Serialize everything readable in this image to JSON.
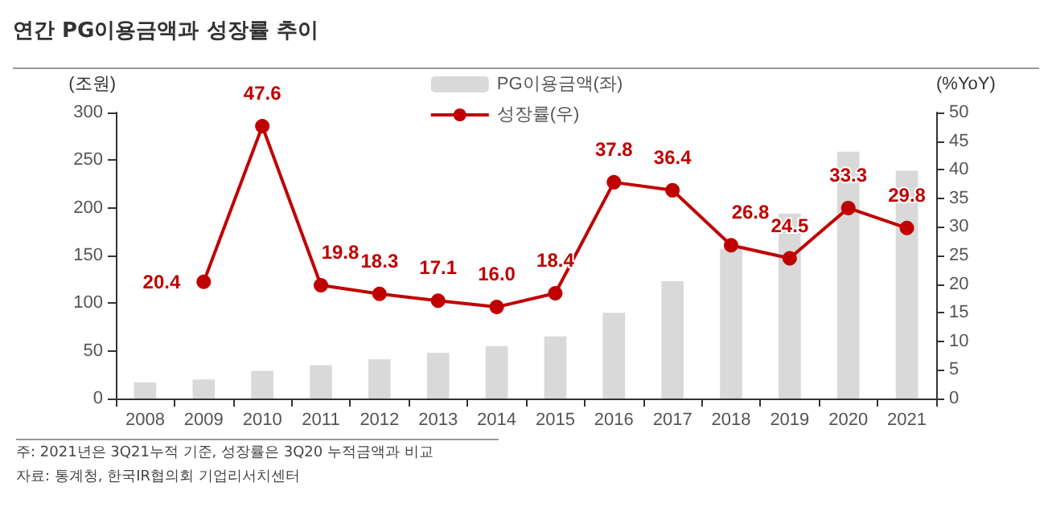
{
  "chart_data": {
    "type": "bar",
    "title": "연간 PG이용금액과 성장률 추이",
    "ylabel": "(조원)",
    "y2label": "(%YoY)",
    "categories": [
      "2008",
      "2009",
      "2010",
      "2011",
      "2012",
      "2013",
      "2014",
      "2015",
      "2016",
      "2017",
      "2018",
      "2019",
      "2020",
      "2021"
    ],
    "series": [
      {
        "name": "PG이용금액(좌)",
        "color": "#d9d9d9",
        "values": [
          17,
          20,
          29,
          35,
          41,
          48,
          55,
          65,
          90,
          123,
          157,
          194,
          259,
          239
        ]
      },
      {
        "name": "성장률(우)",
        "type": "line",
        "axis": "y2",
        "color": "#c00000",
        "marker": "circle",
        "values": [
          null,
          20.4,
          47.6,
          19.8,
          18.3,
          17.1,
          16.0,
          18.4,
          37.8,
          36.4,
          26.8,
          24.5,
          33.3,
          29.8
        ],
        "value_labels": [
          null,
          "20.4",
          "47.6",
          "19.8",
          "18.3",
          "17.1",
          "16.0",
          "18.4",
          "37.8",
          "36.4",
          "26.8",
          "24.5",
          "33.3",
          "29.8"
        ]
      }
    ],
    "ylim": [
      0,
      300
    ],
    "yticks": [
      0,
      50,
      100,
      150,
      200,
      250,
      300
    ],
    "y2lim": [
      0,
      50
    ],
    "y2ticks": [
      0,
      5,
      10,
      15,
      20,
      25,
      30,
      35,
      40,
      45,
      50
    ],
    "grid": false,
    "legend": "top",
    "annotations": [
      "주: 2021년은 3Q21누적 기준, 성장률은 3Q20 누적금액과 비교",
      "자료: 통계청, 한국IR협의회 기업리서치센터"
    ]
  }
}
